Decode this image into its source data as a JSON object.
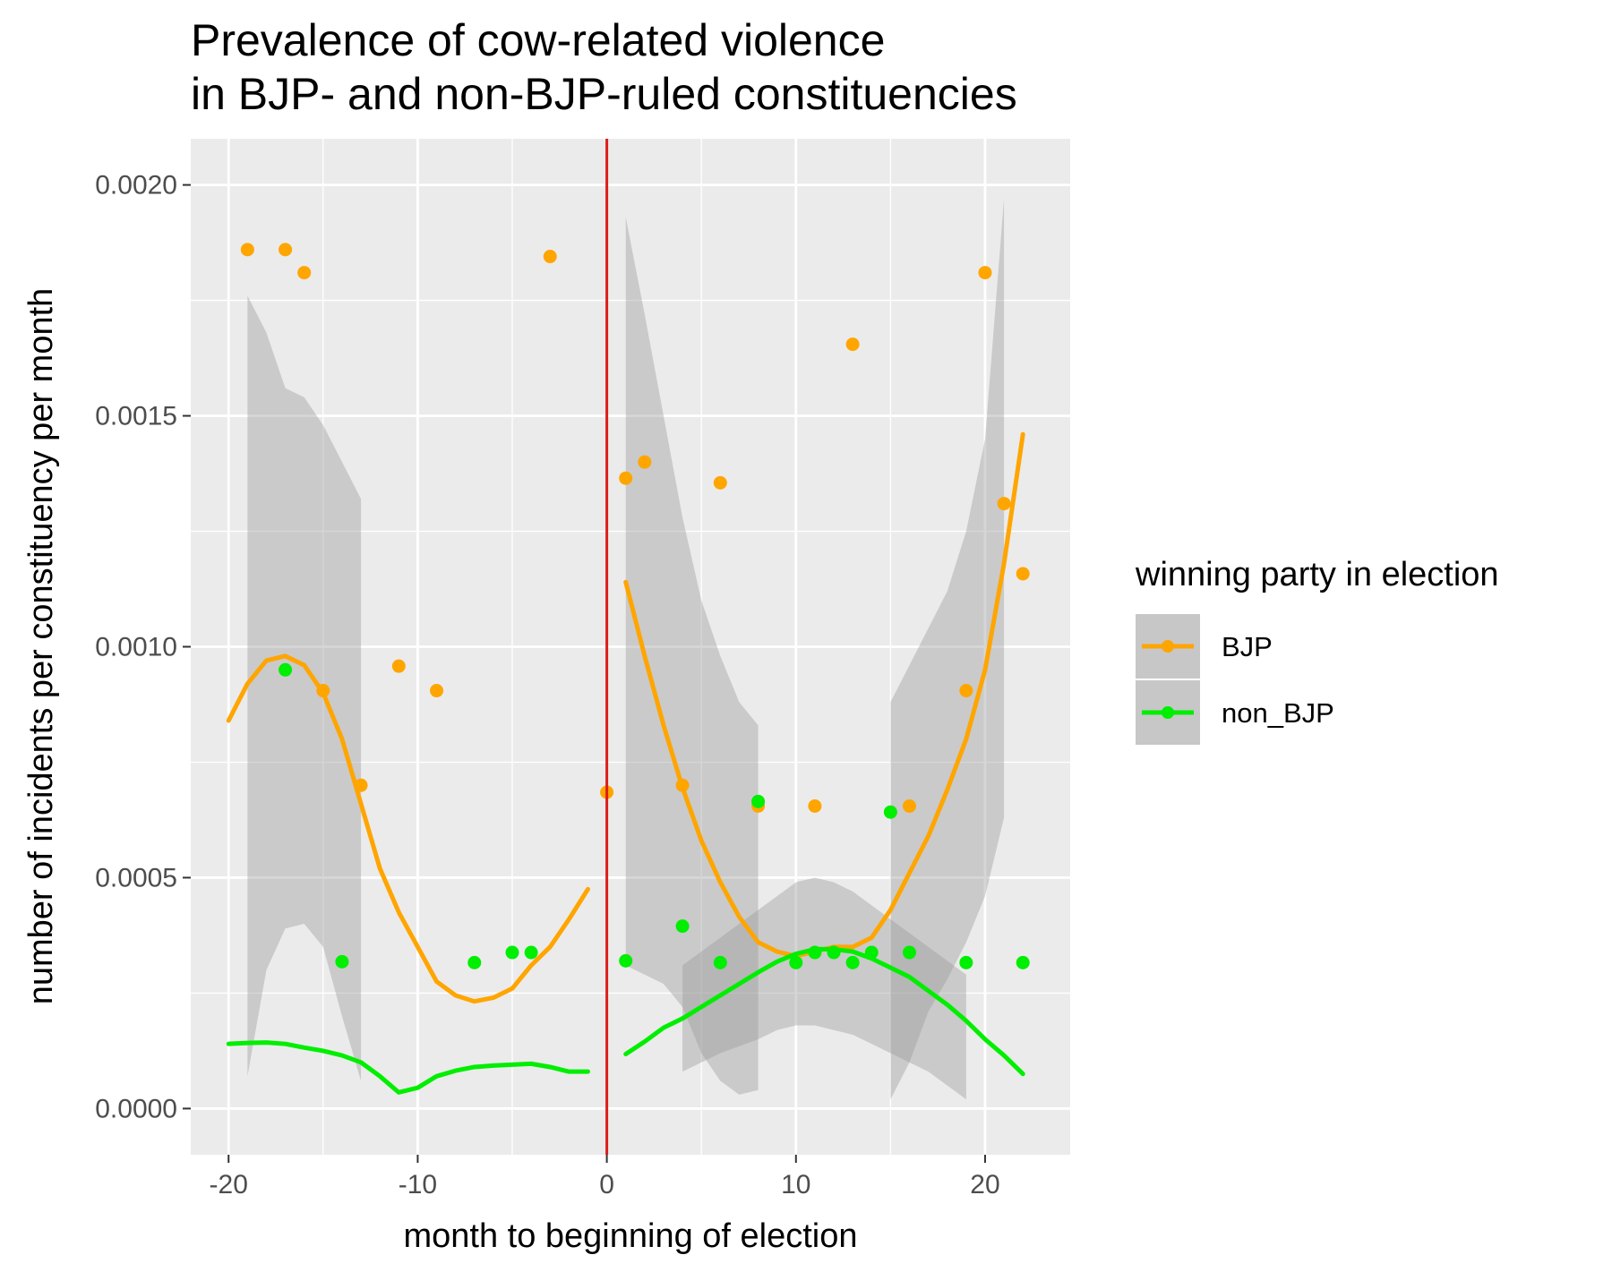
{
  "chart_data": {
    "type": "scatter",
    "title_lines": [
      "Prevalence of cow-related violence",
      "in BJP- and non-BJP-ruled constituencies"
    ],
    "xlabel": "month to beginning of election",
    "ylabel": "number of incidents per constituency per month",
    "xlim": [
      -22,
      24.5
    ],
    "ylim": [
      -0.0001,
      0.0021
    ],
    "x_ticks": [
      -20,
      -10,
      0,
      10,
      20
    ],
    "x_tick_labels": [
      "-20",
      "-10",
      "0",
      "10",
      "20"
    ],
    "y_ticks": [
      0.0,
      0.0005,
      0.001,
      0.0015,
      0.002
    ],
    "y_tick_labels": [
      "0.0000",
      "0.0005",
      "0.0010",
      "0.0015",
      "0.0020"
    ],
    "grid": true,
    "panel_background": "#ebebeb",
    "grid_color": "#ffffff",
    "ribbon_color": "#999999",
    "vline": {
      "x": 0,
      "color": "#dd1c1c"
    },
    "legend": {
      "title": "winning party in election",
      "placement": "right"
    },
    "series": [
      {
        "name": "BJP",
        "color": "#ffa500",
        "points": [
          [
            -19,
            0.00186
          ],
          [
            -17,
            0.00186
          ],
          [
            -16,
            0.00181
          ],
          [
            -3,
            0.001845
          ],
          [
            -15,
            0.000905
          ],
          [
            -13,
            0.0007
          ],
          [
            -11,
            0.000958
          ],
          [
            -9,
            0.000905
          ],
          [
            0,
            0.000685
          ],
          [
            1,
            0.001365
          ],
          [
            2,
            0.0014
          ],
          [
            4,
            0.0007
          ],
          [
            6,
            0.001355
          ],
          [
            8,
            0.000655
          ],
          [
            11,
            0.000655
          ],
          [
            13,
            0.001655
          ],
          [
            16,
            0.000655
          ],
          [
            19,
            0.000905
          ],
          [
            20,
            0.00181
          ],
          [
            21,
            0.00131
          ],
          [
            22,
            0.001158
          ]
        ],
        "smooth_segments": [
          {
            "x": [
              -20,
              -19,
              -18,
              -17,
              -16,
              -15,
              -14,
              -13,
              -12,
              -11,
              -10,
              -9,
              -8,
              -7,
              -6,
              -5,
              -4,
              -3,
              -2,
              -1
            ],
            "y": [
              0.00084,
              0.00092,
              0.00097,
              0.00098,
              0.00096,
              0.0009,
              0.0008,
              0.00066,
              0.00052,
              0.000425,
              0.00035,
              0.000275,
              0.000245,
              0.000232,
              0.00024,
              0.00026,
              0.00031,
              0.00035,
              0.00041,
              0.000475
            ],
            "ribbon_upper": [
              null,
              0.00176,
              0.00168,
              0.00156,
              0.00154,
              0.00148,
              0.0014,
              0.00132,
              null,
              null,
              null,
              null,
              null,
              null,
              null,
              null,
              null,
              null,
              null,
              null
            ],
            "ribbon_lower": [
              null,
              7e-05,
              0.0003,
              0.00039,
              0.0004,
              0.00035,
              0.0002,
              6e-05,
              null,
              null,
              null,
              null,
              null,
              null,
              null,
              null,
              null,
              null,
              null,
              null
            ]
          },
          {
            "x": [
              1,
              2,
              3,
              4,
              5,
              6,
              7,
              8,
              9,
              10,
              11,
              12,
              13,
              14,
              15,
              16,
              17,
              18,
              19,
              20,
              21,
              22
            ],
            "y": [
              0.00114,
              0.00098,
              0.00083,
              0.000695,
              0.00058,
              0.00049,
              0.000415,
              0.00036,
              0.00034,
              0.00033,
              0.00034,
              0.00035,
              0.00035,
              0.00037,
              0.00043,
              0.00051,
              0.00059,
              0.00069,
              0.0008,
              0.00095,
              0.00118,
              0.00146
            ],
            "ribbon_upper": [
              0.00193,
              0.00172,
              0.0015,
              0.00128,
              0.0011,
              0.00098,
              0.00088,
              0.00083,
              null,
              null,
              null,
              null,
              null,
              null,
              0.00088,
              0.00096,
              0.00104,
              0.00112,
              0.00125,
              0.00145,
              0.00197,
              null
            ],
            "ribbon_lower": [
              0.00031,
              0.00029,
              0.00027,
              0.00022,
              0.00012,
              6e-05,
              3e-05,
              4e-05,
              null,
              null,
              null,
              null,
              null,
              null,
              2e-05,
              0.0001,
              0.00021,
              0.00028,
              0.00036,
              0.00046,
              0.00063,
              null
            ]
          }
        ]
      },
      {
        "name": "non_BJP",
        "color": "#00ee00",
        "points": [
          [
            -17,
            0.00095
          ],
          [
            -14,
            0.000318
          ],
          [
            -7,
            0.000316
          ],
          [
            -5,
            0.000338
          ],
          [
            -4,
            0.000338
          ],
          [
            1,
            0.00032
          ],
          [
            4,
            0.000395
          ],
          [
            6,
            0.000316
          ],
          [
            8,
            0.000665
          ],
          [
            10,
            0.000316
          ],
          [
            11,
            0.000338
          ],
          [
            12,
            0.000338
          ],
          [
            13,
            0.000316
          ],
          [
            14,
            0.000338
          ],
          [
            15,
            0.000642
          ],
          [
            16,
            0.000338
          ],
          [
            19,
            0.000316
          ],
          [
            22,
            0.000316
          ]
        ],
        "smooth_segments": [
          {
            "x": [
              -20,
              -19,
              -18,
              -17,
              -16,
              -15,
              -14,
              -13,
              -12,
              -11,
              -10,
              -9,
              -8,
              -7,
              -6,
              -5,
              -4,
              -3,
              -2,
              -1
            ],
            "y": [
              0.00014,
              0.000142,
              0.000143,
              0.00014,
              0.000132,
              0.000125,
              0.000115,
              0.0001,
              7e-05,
              3.5e-05,
              4.5e-05,
              7e-05,
              8.2e-05,
              9e-05,
              9.3e-05,
              9.5e-05,
              9.7e-05,
              9e-05,
              8e-05,
              8e-05
            ],
            "ribbon_upper": [],
            "ribbon_lower": []
          },
          {
            "x": [
              1,
              2,
              3,
              4,
              5,
              6,
              7,
              8,
              9,
              10,
              11,
              12,
              13,
              14,
              15,
              16,
              17,
              18,
              19,
              20,
              21,
              22
            ],
            "y": [
              0.000118,
              0.000145,
              0.000175,
              0.000195,
              0.00022,
              0.000245,
              0.00027,
              0.000295,
              0.000318,
              0.000335,
              0.000345,
              0.000345,
              0.00034,
              0.000325,
              0.000305,
              0.000285,
              0.000255,
              0.000225,
              0.00019,
              0.00015,
              0.000115,
              7.5e-05
            ],
            "ribbon_upper": [
              null,
              null,
              null,
              0.00031,
              0.00034,
              0.00037,
              0.0004,
              0.00043,
              0.00046,
              0.00049,
              0.0005,
              0.00049,
              0.00047,
              0.00044,
              0.00041,
              0.00038,
              0.00035,
              0.00032,
              0.00029,
              null,
              null,
              null
            ],
            "ribbon_lower": [
              null,
              null,
              null,
              8e-05,
              0.0001,
              0.00012,
              0.000135,
              0.00015,
              0.00017,
              0.00018,
              0.00018,
              0.00017,
              0.00016,
              0.00014,
              0.00012,
              0.0001,
              8e-05,
              5e-05,
              2e-05,
              null,
              null,
              null
            ]
          }
        ]
      }
    ]
  }
}
